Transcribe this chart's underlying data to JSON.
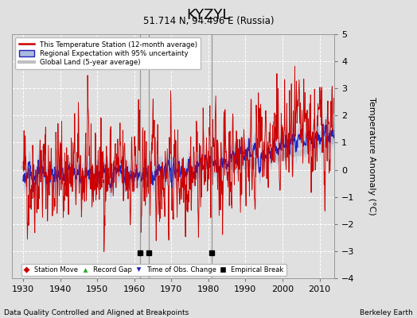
{
  "title": "KYZYL",
  "subtitle": "51.714 N, 94.496 E (Russia)",
  "xlabel_left": "Data Quality Controlled and Aligned at Breakpoints",
  "xlabel_right": "Berkeley Earth",
  "ylabel": "Temperature Anomaly (°C)",
  "xlim": [
    1927,
    2014
  ],
  "ylim": [
    -4,
    5
  ],
  "yticks": [
    -4,
    -3,
    -2,
    -1,
    0,
    1,
    2,
    3,
    4,
    5
  ],
  "xticks": [
    1930,
    1940,
    1950,
    1960,
    1970,
    1980,
    1990,
    2000,
    2010
  ],
  "bg_color": "#e0e0e0",
  "plot_bg_color": "#e0e0e0",
  "grid_color": "#ffffff",
  "station_color": "#cc0000",
  "regional_color": "#2222bb",
  "regional_fill_color": "#aabbdd",
  "global_color": "#c0c0c0",
  "seed": 42,
  "empirical_breaks": [
    1961.5,
    1964.0,
    1981.0
  ],
  "obs_change_years": [],
  "vertical_lines": [
    1961.5,
    1964.0,
    1981.0
  ]
}
